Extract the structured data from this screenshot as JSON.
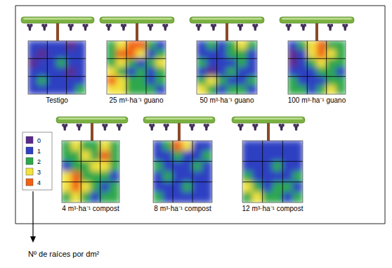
{
  "chart_data": [
    {
      "type": "heatmap",
      "title": "Testigo",
      "tick_labels": false,
      "cells": [
        [
          1,
          1,
          1,
          1,
          0,
          1
        ],
        [
          1,
          0,
          1,
          1,
          1,
          1
        ],
        [
          0,
          1,
          1,
          2,
          1,
          1
        ],
        [
          1,
          1,
          1,
          1,
          0,
          1
        ],
        [
          1,
          2,
          1,
          1,
          1,
          1
        ],
        [
          1,
          1,
          1,
          1,
          1,
          2
        ]
      ]
    },
    {
      "type": "heatmap",
      "title": "25 m³·ha⁻¹ guano",
      "tick_labels": false,
      "cells": [
        [
          2,
          3,
          4,
          4,
          2,
          1
        ],
        [
          2,
          4,
          4,
          3,
          1,
          2
        ],
        [
          2,
          3,
          2,
          1,
          2,
          3
        ],
        [
          3,
          2,
          1,
          2,
          1,
          2
        ],
        [
          4,
          3,
          2,
          2,
          1,
          2
        ],
        [
          3,
          3,
          2,
          2,
          2,
          1
        ]
      ]
    },
    {
      "type": "heatmap",
      "title": "50 m³·ha⁻¹ guano",
      "tick_labels": false,
      "cells": [
        [
          1,
          2,
          1,
          2,
          3,
          2
        ],
        [
          1,
          1,
          1,
          2,
          2,
          1
        ],
        [
          2,
          1,
          1,
          1,
          2,
          1
        ],
        [
          1,
          0,
          1,
          2,
          1,
          1
        ],
        [
          2,
          3,
          2,
          1,
          1,
          2
        ],
        [
          3,
          2,
          1,
          2,
          2,
          1
        ]
      ]
    },
    {
      "type": "heatmap",
      "title": "100 m³·ha⁻¹ guano",
      "tick_labels": false,
      "cells": [
        [
          1,
          2,
          3,
          4,
          2,
          2
        ],
        [
          0,
          1,
          3,
          4,
          3,
          2
        ],
        [
          0,
          1,
          2,
          3,
          2,
          2
        ],
        [
          1,
          1,
          1,
          2,
          2,
          1
        ],
        [
          2,
          1,
          1,
          1,
          2,
          2
        ],
        [
          2,
          2,
          1,
          2,
          3,
          2
        ]
      ]
    },
    {
      "type": "heatmap",
      "title": "4 m³·ha⁻¹ compost",
      "tick_labels": false,
      "cells": [
        [
          2,
          3,
          2,
          2,
          3,
          2
        ],
        [
          2,
          2,
          3,
          2,
          4,
          2
        ],
        [
          1,
          2,
          2,
          3,
          3,
          2
        ],
        [
          3,
          4,
          2,
          2,
          2,
          1
        ],
        [
          3,
          4,
          3,
          2,
          1,
          2
        ],
        [
          2,
          3,
          2,
          1,
          2,
          2
        ]
      ]
    },
    {
      "type": "heatmap",
      "title": "8 m³·ha⁻¹ compost",
      "tick_labels": false,
      "cells": [
        [
          1,
          2,
          4,
          3,
          1,
          1
        ],
        [
          1,
          1,
          2,
          1,
          1,
          2
        ],
        [
          2,
          1,
          1,
          1,
          2,
          1
        ],
        [
          1,
          2,
          1,
          1,
          1,
          1
        ],
        [
          1,
          1,
          1,
          2,
          1,
          1
        ],
        [
          2,
          1,
          1,
          1,
          1,
          1
        ]
      ]
    },
    {
      "type": "heatmap",
      "title": "12 m³·ha⁻¹ compost",
      "tick_labels": false,
      "cells": [
        [
          1,
          1,
          1,
          1,
          1,
          1
        ],
        [
          1,
          1,
          1,
          1,
          1,
          1
        ],
        [
          1,
          1,
          1,
          2,
          1,
          1
        ],
        [
          2,
          1,
          1,
          1,
          1,
          2
        ],
        [
          3,
          2,
          1,
          2,
          2,
          1
        ],
        [
          2,
          3,
          2,
          2,
          1,
          2
        ]
      ]
    }
  ],
  "color_bar": {
    "title": "Nº de raíces por dm²",
    "range": [
      0,
      4
    ],
    "ticks": [
      0,
      1,
      2,
      3,
      4
    ],
    "colors": [
      "#5b2a8c",
      "#2f41c2",
      "#2da84b",
      "#f2e23c",
      "#f26212"
    ]
  }
}
